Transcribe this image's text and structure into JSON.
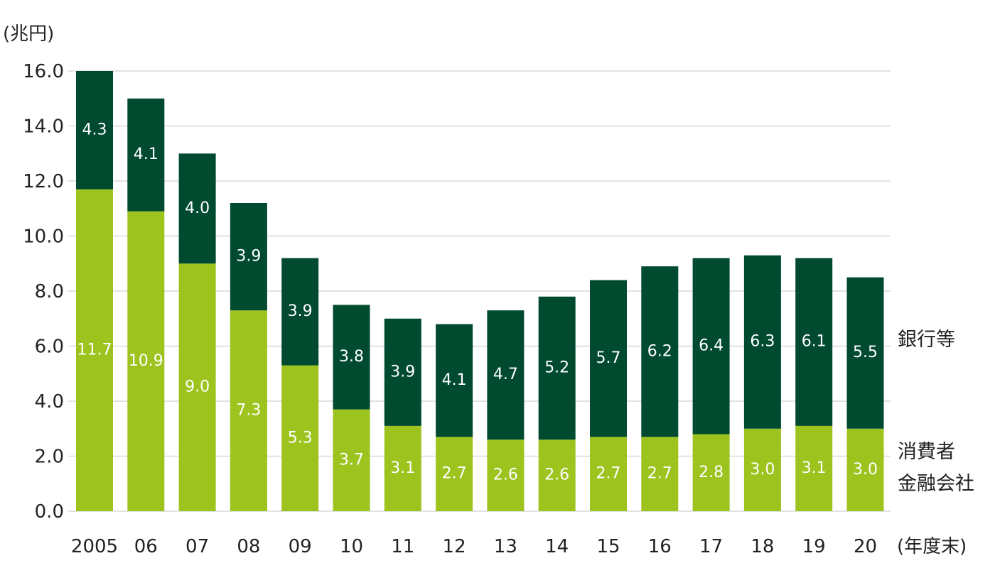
{
  "chart_data": {
    "type": "bar",
    "stacked": true,
    "categories": [
      "2005",
      "06",
      "07",
      "08",
      "09",
      "10",
      "11",
      "12",
      "13",
      "14",
      "15",
      "16",
      "17",
      "18",
      "19",
      "20"
    ],
    "series": [
      {
        "name": "消費者金融会社",
        "legend_lines": [
          "消費者",
          "金融会社"
        ],
        "color": "#9dc31f",
        "values": [
          11.7,
          10.9,
          9.0,
          7.3,
          5.3,
          3.7,
          3.1,
          2.7,
          2.6,
          2.6,
          2.7,
          2.7,
          2.8,
          3.0,
          3.1,
          3.0
        ]
      },
      {
        "name": "銀行等",
        "legend_lines": [
          "銀行等"
        ],
        "color": "#004a2f",
        "values": [
          4.3,
          4.1,
          4.0,
          3.9,
          3.9,
          3.8,
          3.9,
          4.1,
          4.7,
          5.2,
          5.7,
          6.2,
          6.4,
          6.3,
          6.1,
          5.5
        ]
      }
    ],
    "y_unit": "(兆円)",
    "x_unit": "(年度末)",
    "ylim": [
      0,
      16
    ],
    "yticks": [
      "0.0",
      "2.0",
      "4.0",
      "6.0",
      "8.0",
      "10.0",
      "12.0",
      "14.0",
      "16.0"
    ],
    "grid": true,
    "legend": "right"
  }
}
